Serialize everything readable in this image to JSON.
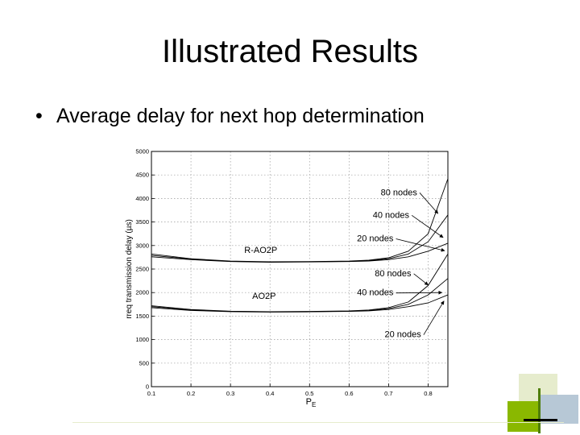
{
  "slide": {
    "title": "Illustrated Results",
    "bullet": "Average  delay for next hop determination",
    "accent_colors": [
      "#8ab800",
      "#4f7e0a",
      "#b7c8d6",
      "#e6eccd",
      "#000000"
    ]
  },
  "chart_data": {
    "type": "line",
    "xlabel": "P",
    "xlabel_subscript": "E",
    "ylabel": "rreq transmission delay (µs)",
    "xlim": [
      0.1,
      0.85
    ],
    "ylim": [
      0,
      5000
    ],
    "xticks": [
      "0.1",
      "0.2",
      "0.3",
      "0.4",
      "0.5",
      "0.6",
      "0.7",
      "0.8"
    ],
    "yticks": [
      "0",
      "500",
      "1000",
      "1500",
      "2000",
      "2500",
      "3000",
      "3500",
      "4000",
      "4500",
      "5000"
    ],
    "grid": true,
    "x": [
      0.1,
      0.2,
      0.3,
      0.4,
      0.5,
      0.6,
      0.65,
      0.7,
      0.75,
      0.8,
      0.85
    ],
    "series": [
      {
        "values": [
          2820,
          2720,
          2670,
          2655,
          2660,
          2670,
          2690,
          2740,
          2880,
          3250,
          4420
        ]
      },
      {
        "values": [
          2790,
          2710,
          2665,
          2650,
          2655,
          2665,
          2680,
          2720,
          2820,
          3080,
          3650
        ]
      },
      {
        "values": [
          2760,
          2700,
          2660,
          2645,
          2650,
          2660,
          2672,
          2700,
          2760,
          2880,
          3050
        ]
      },
      {
        "values": [
          1720,
          1640,
          1605,
          1595,
          1600,
          1610,
          1630,
          1680,
          1800,
          2150,
          2820
        ]
      },
      {
        "values": [
          1700,
          1630,
          1600,
          1590,
          1595,
          1605,
          1620,
          1660,
          1750,
          1950,
          2300
        ]
      },
      {
        "values": [
          1680,
          1620,
          1595,
          1585,
          1590,
          1600,
          1612,
          1640,
          1700,
          1780,
          1950
        ]
      }
    ],
    "annotations": [
      {
        "text": "R-AO2P",
        "x": 0.335,
        "y": 2840
      },
      {
        "text": "AO2P",
        "x": 0.355,
        "y": 1870
      },
      {
        "text": "80 nodes",
        "x": 0.68,
        "y": 4070,
        "target_x": 0.825,
        "target_y": 3680
      },
      {
        "text": "40 nodes",
        "x": 0.66,
        "y": 3590,
        "target_x": 0.838,
        "target_y": 3170
      },
      {
        "text": "20 nodes",
        "x": 0.62,
        "y": 3090,
        "target_x": 0.842,
        "target_y": 2890
      },
      {
        "text": "80 nodes",
        "x": 0.665,
        "y": 2350,
        "target_x": 0.8,
        "target_y": 2160
      },
      {
        "text": "40 nodes",
        "x": 0.62,
        "y": 1940,
        "target_x": 0.835,
        "target_y": 2000
      },
      {
        "text": "20 nodes",
        "x": 0.69,
        "y": 1050,
        "target_x": 0.84,
        "target_y": 1820
      }
    ]
  }
}
